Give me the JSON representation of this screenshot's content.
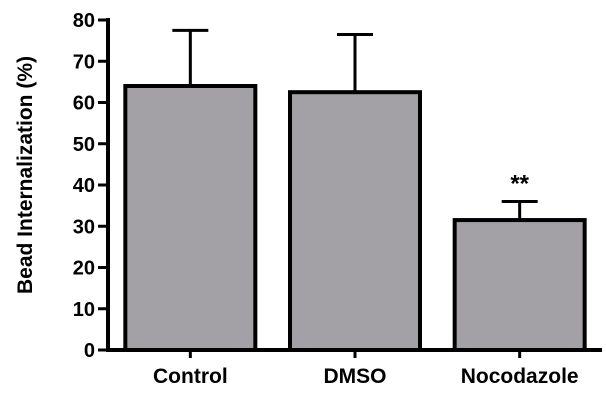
{
  "chart_data": {
    "type": "bar",
    "title": "",
    "xlabel": "",
    "ylabel": "Bead Internalization (%)",
    "categories": [
      "Control",
      "DMSO",
      "Nocodazole"
    ],
    "values": [
      64,
      62.5,
      31.5
    ],
    "error_upper": [
      77.5,
      76.5,
      36
    ],
    "ylim": [
      0,
      80
    ],
    "yticks": [
      0,
      10,
      20,
      30,
      40,
      50,
      60,
      70,
      80
    ],
    "ytick_labels": [
      "0",
      "10",
      "20",
      "30",
      "40",
      "50",
      "60",
      "70",
      "80"
    ],
    "annotations": [
      {
        "category": "Nocodazole",
        "text": "**"
      }
    ],
    "bar_color": "#a3a1a6",
    "edge_color": "#000000",
    "grid": false,
    "legend": "none"
  }
}
